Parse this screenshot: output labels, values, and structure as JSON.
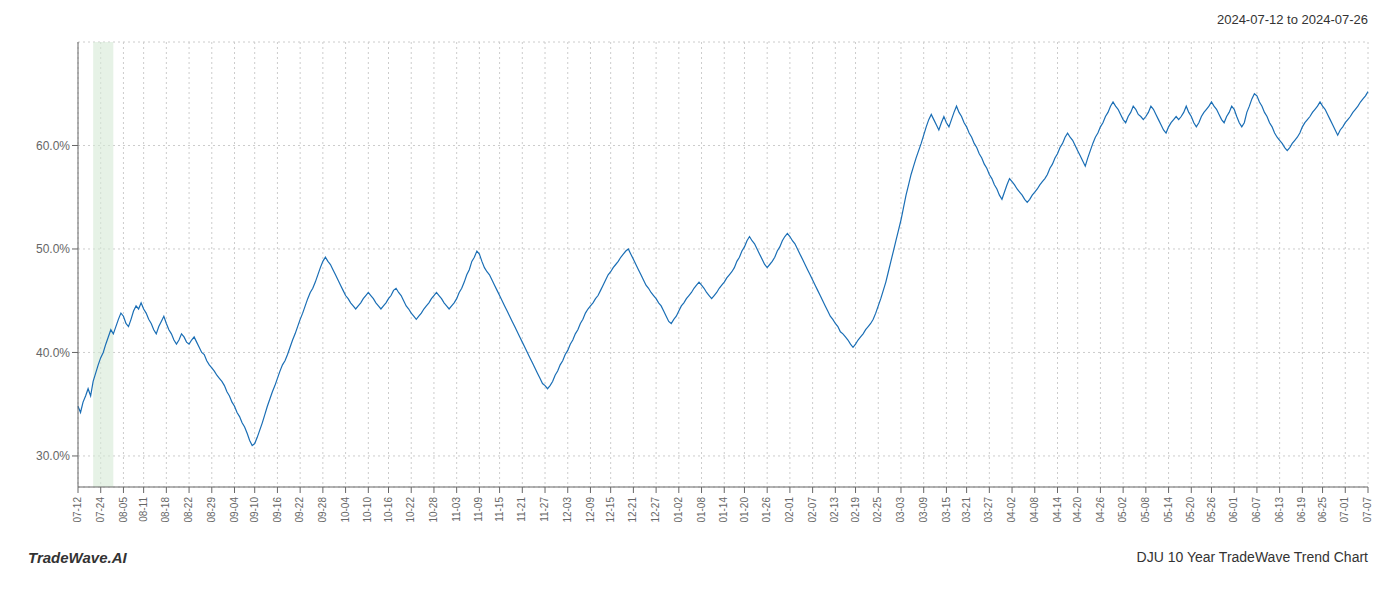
{
  "chart_data": {
    "type": "line",
    "title": "DJU 10 Year TradeWave Trend Chart",
    "subtitle": "2024-07-12 to 2024-07-26",
    "annotations": [
      "TradeWave.AI"
    ],
    "color": "#1a6eb5",
    "grid": true,
    "ylim": [
      0.27,
      0.7
    ],
    "yticks": [
      {
        "value": 0.3,
        "label": "30.0%"
      },
      {
        "value": 0.4,
        "label": "40.0%"
      },
      {
        "value": 0.5,
        "label": "50.0%"
      },
      {
        "value": 0.6,
        "label": "60.0%"
      }
    ],
    "shaded": {
      "from": 6,
      "to": 14,
      "color": "#d6ead6"
    },
    "categories": [
      "07-12",
      null,
      null,
      null,
      null,
      null,
      null,
      null,
      null,
      "07-24",
      null,
      null,
      null,
      null,
      null,
      null,
      null,
      null,
      "08-05",
      null,
      null,
      null,
      null,
      null,
      null,
      null,
      "08-11",
      null,
      null,
      null,
      null,
      null,
      null,
      null,
      null,
      "08-18",
      null,
      null,
      null,
      null,
      null,
      null,
      null,
      null,
      "08-22",
      null,
      null,
      null,
      null,
      null,
      null,
      null,
      null,
      "08-29",
      null,
      null,
      null,
      null,
      null,
      null,
      null,
      null,
      "09-04",
      null,
      null,
      null,
      null,
      null,
      null,
      null,
      "09-10",
      null,
      null,
      null,
      null,
      null,
      null,
      null,
      null,
      "09-16",
      null,
      null,
      null,
      null,
      null,
      null,
      null,
      null,
      "09-22",
      null,
      null,
      null,
      null,
      null,
      null,
      null,
      null,
      "09-28",
      null,
      null,
      null,
      null,
      null,
      null,
      null,
      null,
      "10-04",
      null,
      null,
      null,
      null,
      null,
      null,
      null,
      null,
      "10-10",
      null,
      null,
      null,
      null,
      null,
      null,
      null,
      "10-16",
      null,
      null,
      null,
      null,
      null,
      null,
      null,
      null,
      "10-22",
      null,
      null,
      null,
      null,
      null,
      null,
      null,
      null,
      "10-28",
      null,
      null,
      null,
      null,
      null,
      null,
      null,
      null,
      "11-03",
      null,
      null,
      null,
      null,
      null,
      null,
      null,
      null,
      "11-09",
      null,
      null,
      null,
      null,
      null,
      null,
      null,
      "11-15",
      null,
      null,
      null,
      null,
      null,
      null,
      null,
      null,
      "11-21",
      null,
      null,
      null,
      null,
      null,
      null,
      null,
      null,
      "11-27",
      null,
      null,
      null,
      null,
      null,
      null,
      null,
      null,
      "12-03",
      null,
      null,
      null,
      null,
      null,
      null,
      null,
      null,
      "12-09",
      null,
      null,
      null,
      null,
      null,
      null,
      null,
      "12-15",
      null,
      null,
      null,
      null,
      null,
      null,
      null,
      null,
      "12-21",
      null,
      null,
      null,
      null,
      null,
      null,
      null,
      null,
      "12-27",
      null,
      null,
      null,
      null,
      null,
      null,
      null,
      null,
      "01-02",
      null,
      null,
      null,
      null,
      null,
      null,
      null,
      null,
      "01-08",
      null,
      null,
      null,
      null,
      null,
      null,
      null,
      null,
      "01-14",
      null,
      null,
      null,
      null,
      null,
      null,
      null,
      "01-20",
      null,
      null,
      null,
      null,
      null,
      null,
      null,
      null,
      "01-26",
      null,
      null,
      null,
      null,
      null,
      null,
      null,
      null,
      "02-01",
      null,
      null,
      null,
      null,
      null,
      null,
      null,
      null,
      "02-07",
      null,
      null,
      null,
      null,
      null,
      null,
      null,
      null,
      "02-13",
      null,
      null,
      null,
      null,
      null,
      null,
      null,
      "02-19",
      null,
      null,
      null,
      null,
      null,
      null,
      null,
      null,
      "02-25",
      null,
      null,
      null,
      null,
      null,
      null,
      null,
      null,
      "03-03",
      null,
      null,
      null,
      null,
      null,
      null,
      null,
      null,
      "03-09",
      null,
      null,
      null,
      null,
      null,
      null,
      null,
      null,
      "03-15",
      null,
      null,
      null,
      null,
      null,
      null,
      null,
      "03-21",
      null,
      null,
      null,
      null,
      null,
      null,
      null,
      null,
      "03-27",
      null,
      null,
      null,
      null,
      null,
      null,
      null,
      null,
      "04-02",
      null,
      null,
      null,
      null,
      null,
      null,
      null,
      null,
      "04-08",
      null,
      null,
      null,
      null,
      null,
      null,
      null,
      null,
      "04-14",
      null,
      null,
      null,
      null,
      null,
      null,
      null,
      "04-20",
      null,
      null,
      null,
      null,
      null,
      null,
      null,
      null,
      "04-26",
      null,
      null,
      null,
      null,
      null,
      null,
      null,
      null,
      "05-02",
      null,
      null,
      null,
      null,
      null,
      null,
      null,
      null,
      "05-08",
      null,
      null,
      null,
      null,
      null,
      null,
      null,
      null,
      "05-14",
      null,
      null,
      null,
      null,
      null,
      null,
      null,
      null,
      "05-20",
      null,
      null,
      null,
      null,
      null,
      null,
      null,
      "05-26",
      null,
      null,
      null,
      null,
      null,
      null,
      null,
      null,
      "06-01",
      null,
      null,
      null,
      null,
      null,
      null,
      null,
      null,
      "06-07",
      null,
      null,
      null,
      null,
      null,
      null,
      null,
      null,
      "06-13",
      null,
      null,
      null,
      null,
      null,
      null,
      null,
      null,
      "06-19",
      null,
      null,
      null,
      null,
      null,
      null,
      null,
      "06-25",
      null,
      null,
      null,
      null,
      null,
      null,
      null,
      null,
      "07-01",
      null,
      null,
      null,
      null,
      null,
      null,
      null,
      null,
      "07-07"
    ],
    "values": [
      0.348,
      0.342,
      0.352,
      0.358,
      0.365,
      0.358,
      0.372,
      0.38,
      0.388,
      0.395,
      0.4,
      0.408,
      0.415,
      0.422,
      0.418,
      0.425,
      0.432,
      0.438,
      0.435,
      0.428,
      0.425,
      0.432,
      0.44,
      0.445,
      0.442,
      0.448,
      0.442,
      0.438,
      0.432,
      0.428,
      0.422,
      0.418,
      0.425,
      0.43,
      0.435,
      0.428,
      0.422,
      0.418,
      0.412,
      0.408,
      0.412,
      0.418,
      0.415,
      0.41,
      0.408,
      0.412,
      0.415,
      0.41,
      0.405,
      0.4,
      0.398,
      0.392,
      0.388,
      0.385,
      0.382,
      0.378,
      0.375,
      0.372,
      0.368,
      0.362,
      0.358,
      0.352,
      0.348,
      0.342,
      0.338,
      0.332,
      0.328,
      0.322,
      0.315,
      0.31,
      0.312,
      0.318,
      0.325,
      0.332,
      0.34,
      0.348,
      0.355,
      0.362,
      0.368,
      0.375,
      0.382,
      0.388,
      0.392,
      0.398,
      0.405,
      0.412,
      0.418,
      0.425,
      0.432,
      0.438,
      0.445,
      0.452,
      0.458,
      0.462,
      0.468,
      0.475,
      0.482,
      0.488,
      0.492,
      0.488,
      0.485,
      0.48,
      0.475,
      0.47,
      0.465,
      0.46,
      0.455,
      0.452,
      0.448,
      0.445,
      0.442,
      0.445,
      0.448,
      0.452,
      0.455,
      0.458,
      0.455,
      0.452,
      0.448,
      0.445,
      0.442,
      0.445,
      0.448,
      0.452,
      0.455,
      0.46,
      0.462,
      0.458,
      0.455,
      0.45,
      0.445,
      0.442,
      0.438,
      0.435,
      0.432,
      0.435,
      0.438,
      0.442,
      0.445,
      0.448,
      0.452,
      0.455,
      0.458,
      0.455,
      0.452,
      0.448,
      0.445,
      0.442,
      0.445,
      0.448,
      0.452,
      0.458,
      0.462,
      0.468,
      0.475,
      0.48,
      0.488,
      0.492,
      0.498,
      0.495,
      0.488,
      0.482,
      0.478,
      0.475,
      0.47,
      0.465,
      0.46,
      0.455,
      0.45,
      0.445,
      0.44,
      0.435,
      0.43,
      0.425,
      0.42,
      0.415,
      0.41,
      0.405,
      0.4,
      0.395,
      0.39,
      0.385,
      0.38,
      0.375,
      0.37,
      0.368,
      0.365,
      0.368,
      0.372,
      0.378,
      0.382,
      0.388,
      0.392,
      0.398,
      0.402,
      0.408,
      0.412,
      0.418,
      0.422,
      0.428,
      0.432,
      0.438,
      0.442,
      0.445,
      0.448,
      0.452,
      0.455,
      0.46,
      0.465,
      0.47,
      0.475,
      0.478,
      0.482,
      0.485,
      0.488,
      0.492,
      0.495,
      0.498,
      0.5,
      0.495,
      0.49,
      0.485,
      0.48,
      0.475,
      0.47,
      0.465,
      0.462,
      0.458,
      0.455,
      0.452,
      0.448,
      0.445,
      0.44,
      0.435,
      0.43,
      0.428,
      0.432,
      0.435,
      0.44,
      0.445,
      0.448,
      0.452,
      0.455,
      0.458,
      0.462,
      0.465,
      0.468,
      0.465,
      0.462,
      0.458,
      0.455,
      0.452,
      0.455,
      0.458,
      0.462,
      0.465,
      0.468,
      0.472,
      0.475,
      0.478,
      0.482,
      0.488,
      0.492,
      0.498,
      0.502,
      0.508,
      0.512,
      0.508,
      0.505,
      0.5,
      0.495,
      0.49,
      0.485,
      0.482,
      0.485,
      0.488,
      0.492,
      0.498,
      0.502,
      0.508,
      0.512,
      0.515,
      0.512,
      0.508,
      0.505,
      0.5,
      0.495,
      0.49,
      0.485,
      0.48,
      0.475,
      0.47,
      0.465,
      0.46,
      0.455,
      0.45,
      0.445,
      0.44,
      0.435,
      0.432,
      0.428,
      0.425,
      0.42,
      0.418,
      0.415,
      0.412,
      0.408,
      0.405,
      0.408,
      0.412,
      0.415,
      0.418,
      0.422,
      0.425,
      0.428,
      0.432,
      0.438,
      0.445,
      0.452,
      0.46,
      0.468,
      0.478,
      0.488,
      0.498,
      0.508,
      0.518,
      0.528,
      0.54,
      0.552,
      0.562,
      0.572,
      0.58,
      0.588,
      0.595,
      0.602,
      0.61,
      0.618,
      0.625,
      0.63,
      0.625,
      0.62,
      0.615,
      0.622,
      0.628,
      0.622,
      0.618,
      0.625,
      0.632,
      0.638,
      0.632,
      0.628,
      0.622,
      0.618,
      0.612,
      0.608,
      0.602,
      0.598,
      0.592,
      0.588,
      0.582,
      0.578,
      0.572,
      0.568,
      0.562,
      0.558,
      0.552,
      0.548,
      0.555,
      0.562,
      0.568,
      0.565,
      0.562,
      0.558,
      0.555,
      0.552,
      0.548,
      0.545,
      0.548,
      0.552,
      0.555,
      0.558,
      0.562,
      0.565,
      0.568,
      0.572,
      0.578,
      0.582,
      0.588,
      0.592,
      0.598,
      0.602,
      0.608,
      0.612,
      0.608,
      0.605,
      0.6,
      0.595,
      0.59,
      0.585,
      0.58,
      0.588,
      0.595,
      0.602,
      0.608,
      0.612,
      0.618,
      0.622,
      0.628,
      0.632,
      0.638,
      0.642,
      0.638,
      0.635,
      0.63,
      0.625,
      0.622,
      0.628,
      0.632,
      0.638,
      0.635,
      0.63,
      0.628,
      0.625,
      0.628,
      0.632,
      0.638,
      0.635,
      0.63,
      0.625,
      0.62,
      0.615,
      0.612,
      0.618,
      0.622,
      0.625,
      0.628,
      0.625,
      0.628,
      0.632,
      0.638,
      0.632,
      0.628,
      0.622,
      0.618,
      0.622,
      0.628,
      0.632,
      0.635,
      0.638,
      0.642,
      0.638,
      0.635,
      0.63,
      0.625,
      0.622,
      0.628,
      0.632,
      0.638,
      0.635,
      0.628,
      0.622,
      0.618,
      0.622,
      0.632,
      0.638,
      0.645,
      0.65,
      0.648,
      0.642,
      0.638,
      0.632,
      0.628,
      0.622,
      0.618,
      0.612,
      0.608,
      0.605,
      0.602,
      0.598,
      0.595,
      0.598,
      0.602,
      0.605,
      0.608,
      0.612,
      0.618,
      0.622,
      0.625,
      0.628,
      0.632,
      0.635,
      0.638,
      0.642,
      0.638,
      0.635,
      0.63,
      0.625,
      0.62,
      0.615,
      0.61,
      0.615,
      0.618,
      0.622,
      0.625,
      0.628,
      0.632,
      0.635,
      0.638,
      0.642,
      0.645,
      0.648,
      0.652
    ]
  }
}
